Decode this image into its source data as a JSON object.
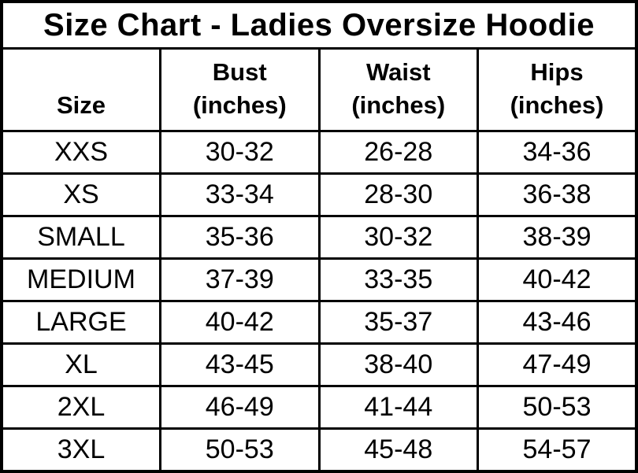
{
  "chart_data": {
    "type": "table",
    "title": "Size Chart - Ladies Oversize Hoodie",
    "columns": [
      {
        "label": "Size"
      },
      {
        "label": "Bust",
        "sub": "(inches)"
      },
      {
        "label": "Waist",
        "sub": "(inches)"
      },
      {
        "label": "Hips",
        "sub": "(inches)"
      }
    ],
    "rows": [
      {
        "size": "XXS",
        "bust": "30-32",
        "waist": "26-28",
        "hips": "34-36"
      },
      {
        "size": "XS",
        "bust": "33-34",
        "waist": "28-30",
        "hips": "36-38"
      },
      {
        "size": "SMALL",
        "bust": "35-36",
        "waist": "30-32",
        "hips": "38-39"
      },
      {
        "size": "MEDIUM",
        "bust": "37-39",
        "waist": "33-35",
        "hips": "40-42"
      },
      {
        "size": "LARGE",
        "bust": "40-42",
        "waist": "35-37",
        "hips": "43-46"
      },
      {
        "size": "XL",
        "bust": "43-45",
        "waist": "38-40",
        "hips": "47-49"
      },
      {
        "size": "2XL",
        "bust": "46-49",
        "waist": "41-44",
        "hips": "50-53"
      },
      {
        "size": "3XL",
        "bust": "50-53",
        "waist": "45-48",
        "hips": "54-57"
      }
    ],
    "colors": {
      "background": "#ffffff",
      "border": "#000000",
      "text": "#000000"
    },
    "layout": {
      "grid": true,
      "column_width_pct": [
        25,
        25,
        25,
        25
      ]
    }
  }
}
